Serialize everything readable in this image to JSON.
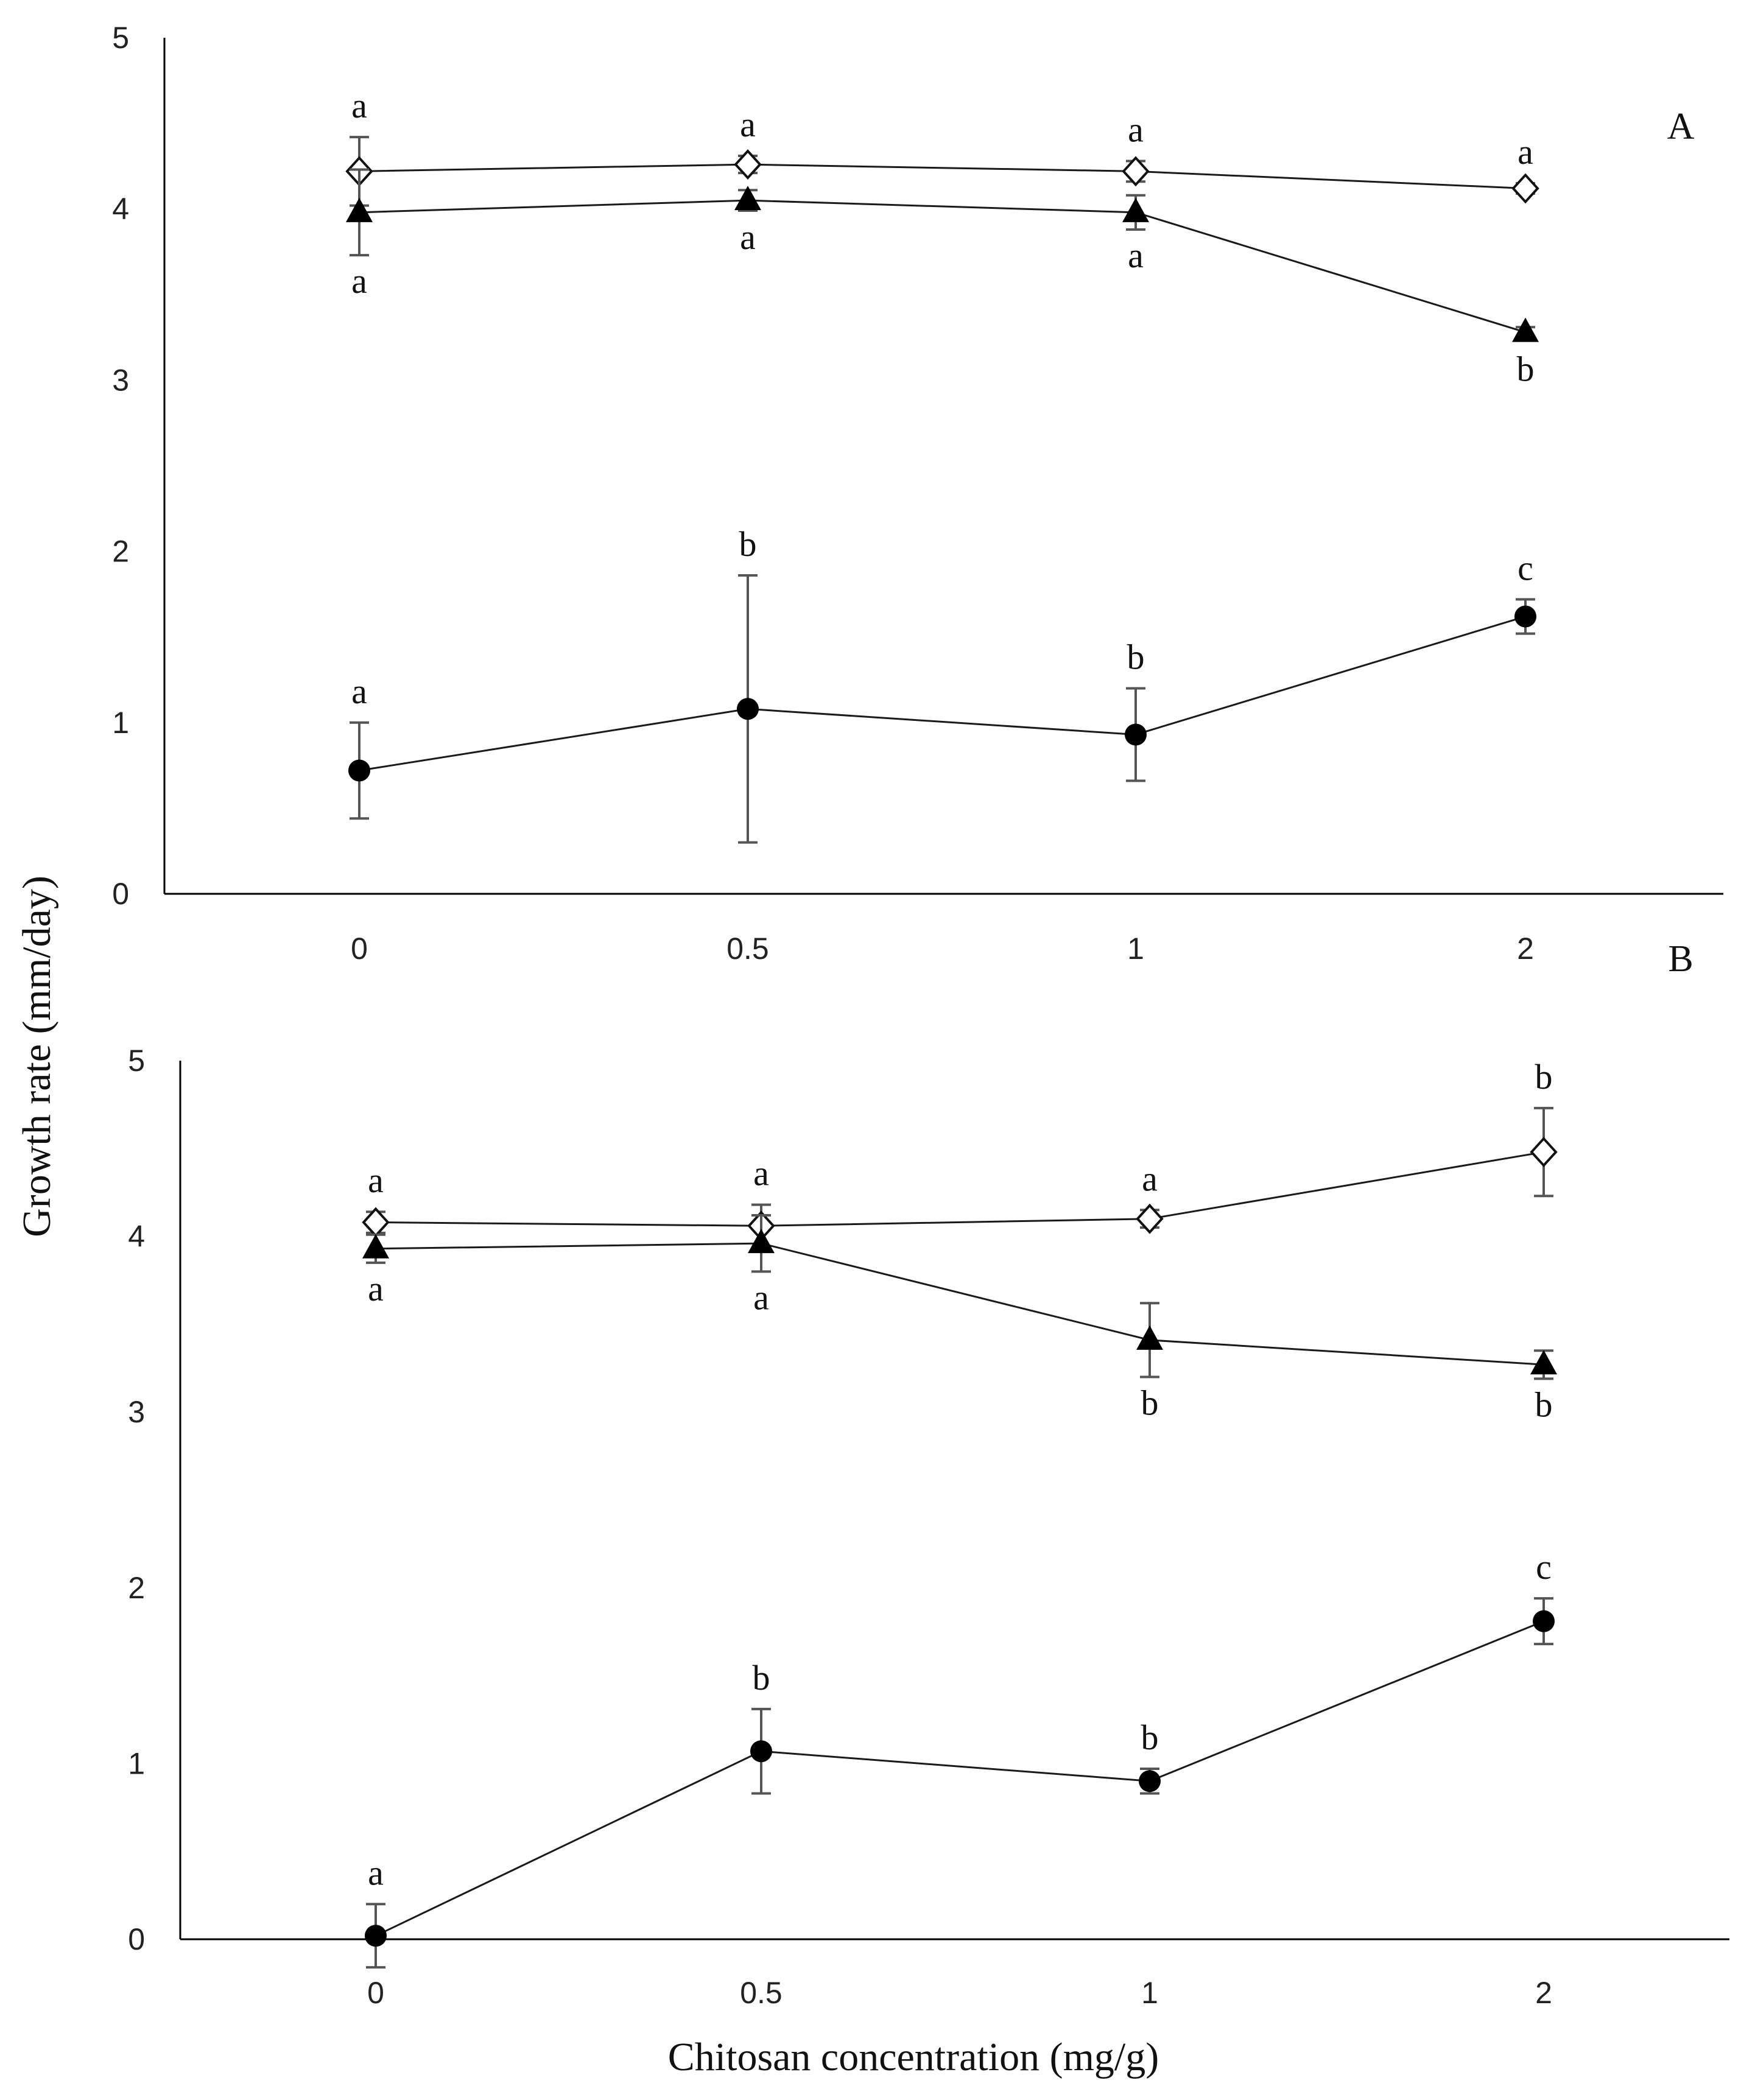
{
  "figure": {
    "y_axis_label": "Growth rate (mm/day)",
    "x_axis_label": "Chitosan concentration (mg/g)"
  },
  "colors": {
    "axis": "#000000",
    "line": "#1a1a1a",
    "marker_fill": "#000000",
    "error_bar": "#555555",
    "background": "#ffffff"
  },
  "chart_data": [
    {
      "type": "line",
      "panel_label": "A",
      "categories": [
        "0",
        "0.5",
        "1",
        "2"
      ],
      "ylim": [
        0,
        5
      ],
      "yticks": [
        "0",
        "1",
        "2",
        "3",
        "4",
        "5"
      ],
      "xlabel": "Chitosan concentration (mg/g)",
      "ylabel": "Growth rate (mm/day)",
      "series": [
        {
          "name": "open-diamond",
          "marker": "diamond-open",
          "values": [
            4.22,
            4.26,
            4.22,
            4.12
          ],
          "errors": [
            0.2,
            0.05,
            0.06,
            0.03
          ],
          "letters": [
            "a",
            "a",
            "a",
            "a"
          ],
          "letter_pos": "above"
        },
        {
          "name": "filled-triangle",
          "marker": "triangle-filled",
          "values": [
            3.98,
            4.05,
            3.98,
            3.28
          ],
          "errors": [
            0.25,
            0.06,
            0.1,
            0.03
          ],
          "letters": [
            "a",
            "a",
            "a",
            "b"
          ],
          "letter_pos": "below"
        },
        {
          "name": "filled-circle",
          "marker": "circle-filled",
          "values": [
            0.72,
            1.08,
            0.93,
            1.62
          ],
          "errors": [
            0.28,
            0.78,
            0.27,
            0.1
          ],
          "letters": [
            "a",
            "b",
            "b",
            "c"
          ],
          "letter_pos": "above"
        }
      ]
    },
    {
      "type": "line",
      "panel_label": "B",
      "categories": [
        "0",
        "0.5",
        "1",
        "2"
      ],
      "ylim": [
        0,
        5
      ],
      "yticks": [
        "0",
        "1",
        "2",
        "3",
        "4",
        "5"
      ],
      "xlabel": "Chitosan concentration (mg/g)",
      "ylabel": "Growth rate (mm/day)",
      "series": [
        {
          "name": "open-diamond",
          "marker": "diamond-open",
          "values": [
            4.08,
            4.06,
            4.1,
            4.48
          ],
          "errors": [
            0.06,
            0.12,
            0.05,
            0.25
          ],
          "letters": [
            "a",
            "a",
            "a",
            "b"
          ],
          "letter_pos": "above"
        },
        {
          "name": "filled-triangle",
          "marker": "triangle-filled",
          "values": [
            3.93,
            3.96,
            3.41,
            3.27
          ],
          "errors": [
            0.08,
            0.16,
            0.21,
            0.08
          ],
          "letters": [
            "a",
            "a",
            "b",
            "b"
          ],
          "letter_pos": "below"
        },
        {
          "name": "filled-circle",
          "marker": "circle-filled",
          "values": [
            0.02,
            1.07,
            0.9,
            1.81
          ],
          "errors": [
            0.18,
            0.24,
            0.07,
            0.13
          ],
          "letters": [
            "a",
            "b",
            "b",
            "c"
          ],
          "letter_pos": "above"
        }
      ]
    }
  ]
}
